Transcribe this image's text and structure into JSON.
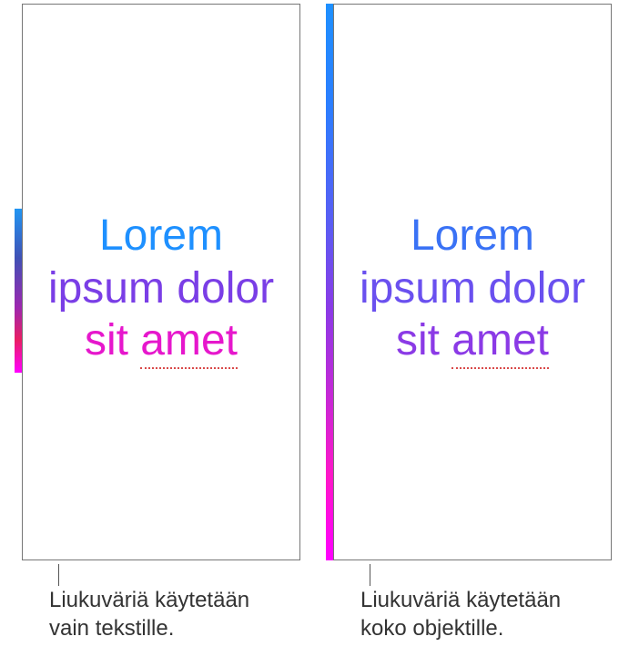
{
  "left_example": {
    "text_line1": "Lorem",
    "text_line2": "ipsum dolor",
    "text_line3_a": "sit ",
    "text_line3_b": "amet",
    "caption": "Liukuväriä käytetään vain tekstille.",
    "gradient_colors": [
      "#1e90ff",
      "#7a3ee6",
      "#e617cc",
      "#ff00ff"
    ],
    "line1_color": "#1e90ff",
    "line2_color": "#7a3ee6",
    "line3_color": "#e617cc",
    "panel_border": "#777777",
    "panel_bg": "#ffffff",
    "font_size": 48,
    "strip_height": 180
  },
  "right_example": {
    "text_line1": "Lorem",
    "text_line2": "ipsum dolor",
    "text_line3_a": "sit ",
    "text_line3_b": "amet",
    "caption": "Liukuväriä käytetään koko objektille.",
    "gradient_colors": [
      "#1e90ff",
      "#5b5cf3",
      "#8b3ae6",
      "#c429d6",
      "#ff00ff"
    ],
    "line1_color": "#3a72f5",
    "line2_color": "#6a50ef",
    "line3_color": "#8b3ae6",
    "panel_border": "#777777",
    "panel_bg": "#ffffff",
    "font_size": 48,
    "strip_height": 611
  },
  "underline_color": "#d94a4a",
  "caption_text_color": "#333333",
  "caption_font_size": 24
}
